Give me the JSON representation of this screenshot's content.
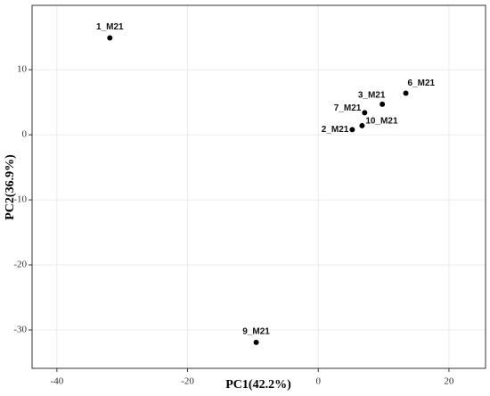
{
  "chart_data": {
    "type": "scatter",
    "x_label": "PC1(42.2%)",
    "y_label": "PC2(36.9%)",
    "series": [
      {
        "name": "samples",
        "color": "#000000",
        "labels": [
          "1_M21",
          "9_M21",
          "6_M21",
          "3_M21",
          "7_M21",
          "10_M21",
          "2_M21"
        ],
        "x": [
          -31.9,
          -9.5,
          13.4,
          9.8,
          7.1,
          6.7,
          5.2
        ],
        "values": [
          14.9,
          -31.9,
          6.4,
          4.7,
          3.4,
          1.4,
          0.8
        ]
      }
    ],
    "xlim": [
      -43.8,
      25.6
    ],
    "xticks": [
      -40,
      -20,
      0,
      20
    ],
    "ylim": [
      -35.9,
      19.9
    ],
    "yticks": [
      -30,
      -20,
      -10,
      0,
      10
    ],
    "grid": true
  }
}
